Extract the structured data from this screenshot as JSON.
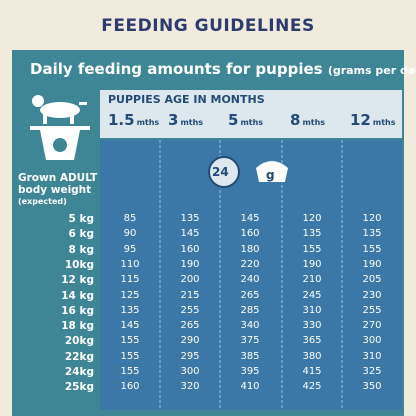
{
  "header": {
    "title": "FEEDING GUIDELINES"
  },
  "subtitle": {
    "text": "Daily feeding amounts for puppies",
    "unit": "(grams per day):"
  },
  "table": {
    "age_header": "PUPPIES AGE IN MONTHS",
    "columns": [
      {
        "age": "1.5",
        "unit": "mths"
      },
      {
        "age": "3",
        "unit": "mths"
      },
      {
        "age": "5",
        "unit": "mths"
      },
      {
        "age": "8",
        "unit": "mths"
      },
      {
        "age": "12",
        "unit": "mths"
      }
    ],
    "row_header": [
      "Grown ADULT",
      "body weight",
      "(expected)"
    ],
    "icon": {
      "hours": "24",
      "unit": "g"
    },
    "rows": [
      {
        "weight": "5 kg",
        "values": [
          85,
          135,
          145,
          120,
          120
        ]
      },
      {
        "weight": "6 kg",
        "values": [
          90,
          145,
          160,
          135,
          135
        ]
      },
      {
        "weight": "8 kg",
        "values": [
          95,
          160,
          180,
          155,
          155
        ]
      },
      {
        "weight": "10kg",
        "values": [
          110,
          190,
          220,
          190,
          190
        ]
      },
      {
        "weight": "12 kg",
        "values": [
          115,
          200,
          240,
          210,
          205
        ]
      },
      {
        "weight": "14 kg",
        "values": [
          125,
          215,
          265,
          245,
          230
        ]
      },
      {
        "weight": "16 kg",
        "values": [
          135,
          255,
          285,
          310,
          255
        ]
      },
      {
        "weight": "18 kg",
        "values": [
          145,
          265,
          340,
          330,
          270
        ]
      },
      {
        "weight": "20kg",
        "values": [
          155,
          290,
          375,
          365,
          300
        ]
      },
      {
        "weight": "22kg",
        "values": [
          155,
          295,
          385,
          380,
          310
        ]
      },
      {
        "weight": "24kg",
        "values": [
          155,
          300,
          395,
          415,
          325
        ]
      },
      {
        "weight": "25kg",
        "values": [
          160,
          320,
          410,
          425,
          350
        ]
      }
    ]
  }
}
